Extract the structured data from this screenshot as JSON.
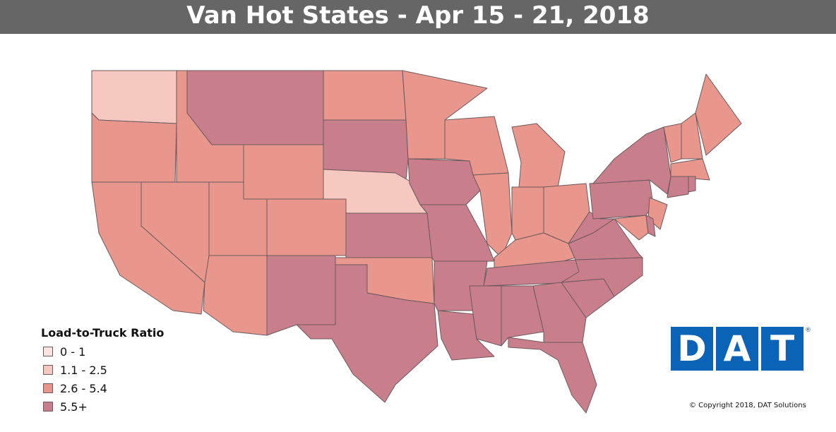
{
  "header": {
    "title": "Van Hot States - Apr 15 - 21, 2018"
  },
  "legend": {
    "title": "Load-to-Truck Ratio",
    "items": [
      "0 - 1",
      "1.1 - 2.5",
      "2.6 - 5.4",
      "5.5+"
    ]
  },
  "logo": {
    "text": "DAT",
    "mark": "®"
  },
  "footer": {
    "copyright": "© Copyright 2018, DAT Solutions"
  }
}
